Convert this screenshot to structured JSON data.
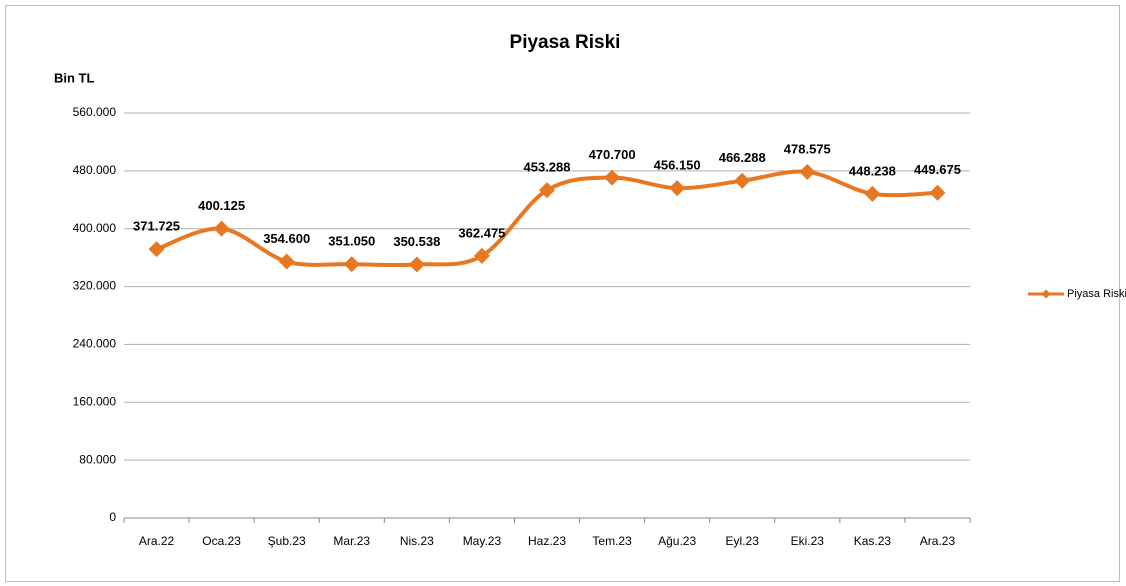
{
  "chart_data": {
    "type": "line",
    "title": "Piyasa Riski",
    "y_label": "Bin TL",
    "categories": [
      "Ara.22",
      "Oca.23",
      "Şub.23",
      "Mar.23",
      "Nis.23",
      "May.23",
      "Haz.23",
      "Tem.23",
      "Ağu.23",
      "Eyl.23",
      "Eki.23",
      "Kas.23",
      "Ara.23"
    ],
    "series": [
      {
        "name": "Piyasa Riski",
        "color": "#e87722",
        "values": [
          371725,
          400125,
          354600,
          351050,
          350538,
          362475,
          453288,
          470700,
          456150,
          466288,
          478575,
          448238,
          449675
        ],
        "value_labels": [
          "371.725",
          "400.125",
          "354.600",
          "351.050",
          "350.538",
          "362.475",
          "453.288",
          "470.700",
          "456.150",
          "466.288",
          "478.575",
          "448.238",
          "449.675"
        ]
      }
    ],
    "ylim": [
      0,
      560000
    ],
    "yticks": [
      0,
      {
        "value": 80000,
        "label": "80.000"
      },
      {
        "value": 160000,
        "label": "160.000"
      },
      {
        "value": 240000,
        "label": "240.000"
      },
      {
        "value": 320000,
        "label": "320.000"
      },
      {
        "value": 400000,
        "label": "400.000"
      },
      {
        "value": 480000,
        "label": "480.000"
      },
      {
        "value": 560000,
        "label": "560.000"
      }
    ],
    "grid": true,
    "legend": "right"
  }
}
